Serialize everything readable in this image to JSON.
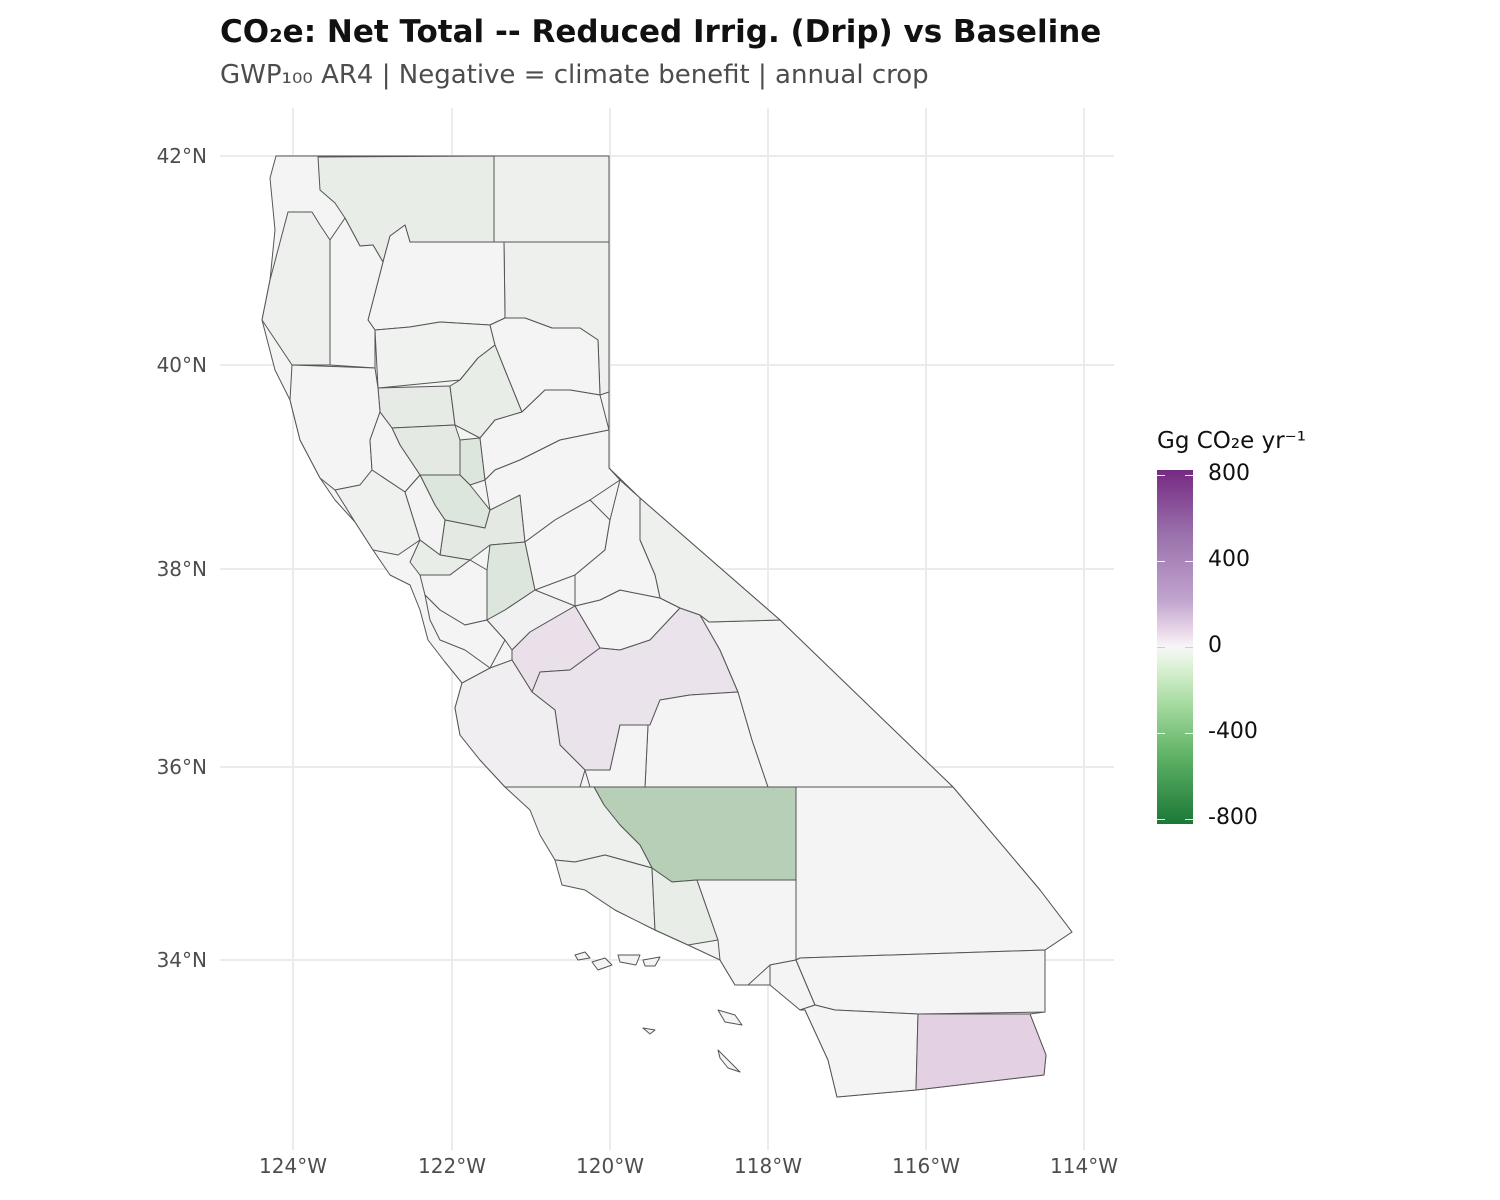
{
  "title": "CO₂e: Net Total -- Reduced Irrig. (Drip) vs Baseline",
  "subtitle": "GWP₁₀₀ AR4 | Negative = climate benefit | annual crop",
  "map": {
    "x_ticks": [
      "124°W",
      "122°W",
      "120°W",
      "118°W",
      "116°W",
      "114°W"
    ],
    "y_ticks": [
      "42°N",
      "40°N",
      "38°N",
      "36°N",
      "34°N"
    ],
    "colors": {
      "neutral": "#f4f4f4",
      "light_green": "#eaeeea",
      "mid_green": "#dde6dc",
      "kern_green": "#b6cfb6",
      "light_purple": "#eadfe9",
      "imperial_purple": "#e3d0e3",
      "border": "#555555",
      "grid": "#ebebeb"
    }
  },
  "legend": {
    "title": "Gg CO₂e yr⁻¹",
    "labels": [
      "800",
      "400",
      "0",
      "-400",
      "-800"
    ],
    "scale_min": -800,
    "scale_max": 800,
    "color_high": "#762a83",
    "color_mid": "#f7f7f7",
    "color_low": "#1b7837"
  }
}
